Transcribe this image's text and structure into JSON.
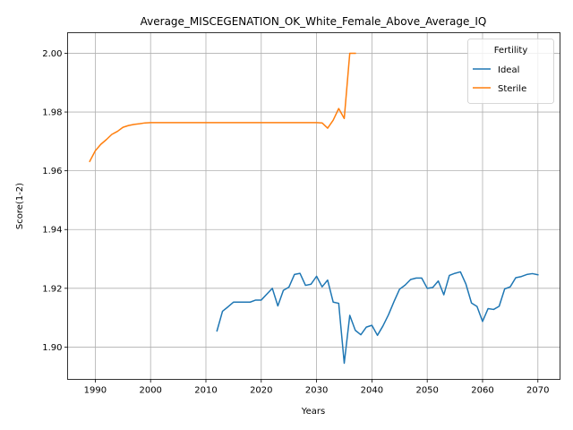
{
  "chart_data": {
    "type": "line",
    "title": "Average_MISCEGENATION_OK_White_Female_Above_Average_IQ",
    "xlabel": "Years",
    "ylabel": "Score(1-2)",
    "xlim": [
      1985,
      2074
    ],
    "ylim": [
      1.889,
      2.007
    ],
    "xticks": [
      1990,
      2000,
      2010,
      2020,
      2030,
      2040,
      2050,
      2060,
      2070
    ],
    "yticks": [
      1.9,
      1.92,
      1.94,
      1.96,
      1.98,
      2.0
    ],
    "ytick_labels": [
      "1.90",
      "1.92",
      "1.94",
      "1.96",
      "1.98",
      "2.00"
    ],
    "grid": true,
    "legend": {
      "title": "Fertility",
      "position": "top-right"
    },
    "series": [
      {
        "name": "Ideal",
        "color": "#1f77b4",
        "x": [
          2012,
          2013,
          2014,
          2015,
          2016,
          2017,
          2018,
          2019,
          2020,
          2021,
          2022,
          2023,
          2024,
          2025,
          2026,
          2027,
          2028,
          2029,
          2030,
          2031,
          2032,
          2033,
          2034,
          2035,
          2036,
          2037,
          2038,
          2039,
          2040,
          2041,
          2042,
          2043,
          2044,
          2045,
          2046,
          2047,
          2048,
          2049,
          2050,
          2051,
          2052,
          2053,
          2054,
          2055,
          2056,
          2057,
          2058,
          2059,
          2060,
          2061,
          2062,
          2063,
          2064,
          2065,
          2066,
          2067,
          2068,
          2069,
          2070
        ],
        "y": [
          1.9055,
          1.9122,
          1.9137,
          1.9153,
          1.9153,
          1.9153,
          1.9153,
          1.916,
          1.916,
          1.918,
          1.92,
          1.914,
          1.9193,
          1.9204,
          1.9247,
          1.9251,
          1.921,
          1.9214,
          1.9241,
          1.9205,
          1.9228,
          1.9153,
          1.9149,
          1.8945,
          1.9108,
          1.9057,
          1.9042,
          1.9068,
          1.9074,
          1.904,
          1.9072,
          1.911,
          1.9155,
          1.9197,
          1.9211,
          1.923,
          1.9235,
          1.9235,
          1.92,
          1.9203,
          1.9225,
          1.9178,
          1.9244,
          1.9251,
          1.9256,
          1.9214,
          1.915,
          1.9138,
          1.9087,
          1.9131,
          1.9128,
          1.9139,
          1.9198,
          1.9205,
          1.9236,
          1.924,
          1.9247,
          1.925,
          1.9246
        ]
      },
      {
        "name": "Sterile",
        "color": "#ff7f0e",
        "x": [
          1989,
          1990,
          1991,
          1992,
          1993,
          1994,
          1995,
          1996,
          1997,
          1998,
          1999,
          2000,
          2001,
          2005,
          2010,
          2015,
          2020,
          2025,
          2030,
          2031,
          2032,
          2033,
          2034,
          2035,
          2036,
          2037
        ],
        "y": [
          1.9632,
          1.9668,
          1.969,
          1.9706,
          1.9724,
          1.9734,
          1.9748,
          1.9754,
          1.9758,
          1.976,
          1.9763,
          1.9764,
          1.9764,
          1.9764,
          1.9764,
          1.9764,
          1.9764,
          1.9764,
          1.9764,
          1.9763,
          1.9745,
          1.9772,
          1.9812,
          1.9778,
          2.0,
          2.0
        ]
      }
    ]
  }
}
